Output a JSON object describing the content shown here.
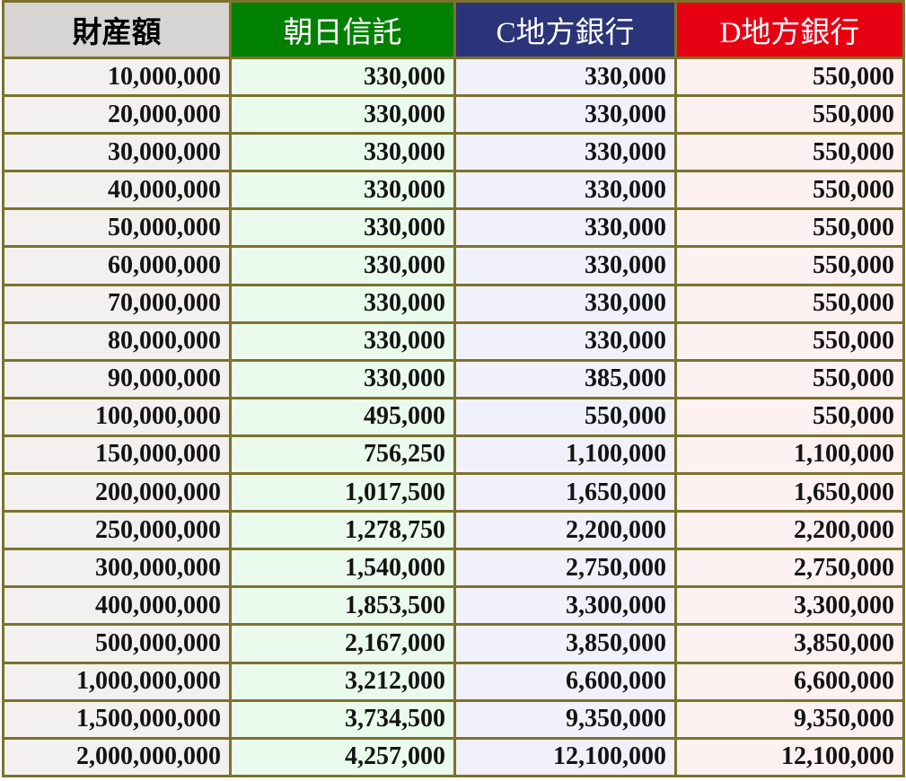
{
  "table": {
    "border_color": "#7c722c",
    "columns": [
      {
        "key": "asset_amount",
        "label": "財産額",
        "header_bg": "#d7d4d4",
        "header_text_color": "#000000",
        "cell_bg": "#f2f1f0"
      },
      {
        "key": "asahi_trust",
        "label": "朝日信託",
        "header_bg": "#008000",
        "header_text_color": "#ffffff",
        "cell_bg": "#eafaec"
      },
      {
        "key": "c_bank",
        "label": "C地方銀行",
        "header_bg": "#2b3478",
        "header_text_color": "#ffffff",
        "cell_bg": "#f0f1fa"
      },
      {
        "key": "d_bank",
        "label": "D地方銀行",
        "header_bg": "#e60012",
        "header_text_color": "#ffffff",
        "cell_bg": "#fdf1f1"
      }
    ],
    "rows": [
      [
        "10,000,000",
        "330,000",
        "330,000",
        "550,000"
      ],
      [
        "20,000,000",
        "330,000",
        "330,000",
        "550,000"
      ],
      [
        "30,000,000",
        "330,000",
        "330,000",
        "550,000"
      ],
      [
        "40,000,000",
        "330,000",
        "330,000",
        "550,000"
      ],
      [
        "50,000,000",
        "330,000",
        "330,000",
        "550,000"
      ],
      [
        "60,000,000",
        "330,000",
        "330,000",
        "550,000"
      ],
      [
        "70,000,000",
        "330,000",
        "330,000",
        "550,000"
      ],
      [
        "80,000,000",
        "330,000",
        "330,000",
        "550,000"
      ],
      [
        "90,000,000",
        "330,000",
        "385,000",
        "550,000"
      ],
      [
        "100,000,000",
        "495,000",
        "550,000",
        "550,000"
      ],
      [
        "150,000,000",
        "756,250",
        "1,100,000",
        "1,100,000"
      ],
      [
        "200,000,000",
        "1,017,500",
        "1,650,000",
        "1,650,000"
      ],
      [
        "250,000,000",
        "1,278,750",
        "2,200,000",
        "2,200,000"
      ],
      [
        "300,000,000",
        "1,540,000",
        "2,750,000",
        "2,750,000"
      ],
      [
        "400,000,000",
        "1,853,500",
        "3,300,000",
        "3,300,000"
      ],
      [
        "500,000,000",
        "2,167,000",
        "3,850,000",
        "3,850,000"
      ],
      [
        "1,000,000,000",
        "3,212,000",
        "6,600,000",
        "6,600,000"
      ],
      [
        "1,500,000,000",
        "3,734,500",
        "9,350,000",
        "9,350,000"
      ],
      [
        "2,000,000,000",
        "4,257,000",
        "12,100,000",
        "12,100,000"
      ]
    ]
  }
}
